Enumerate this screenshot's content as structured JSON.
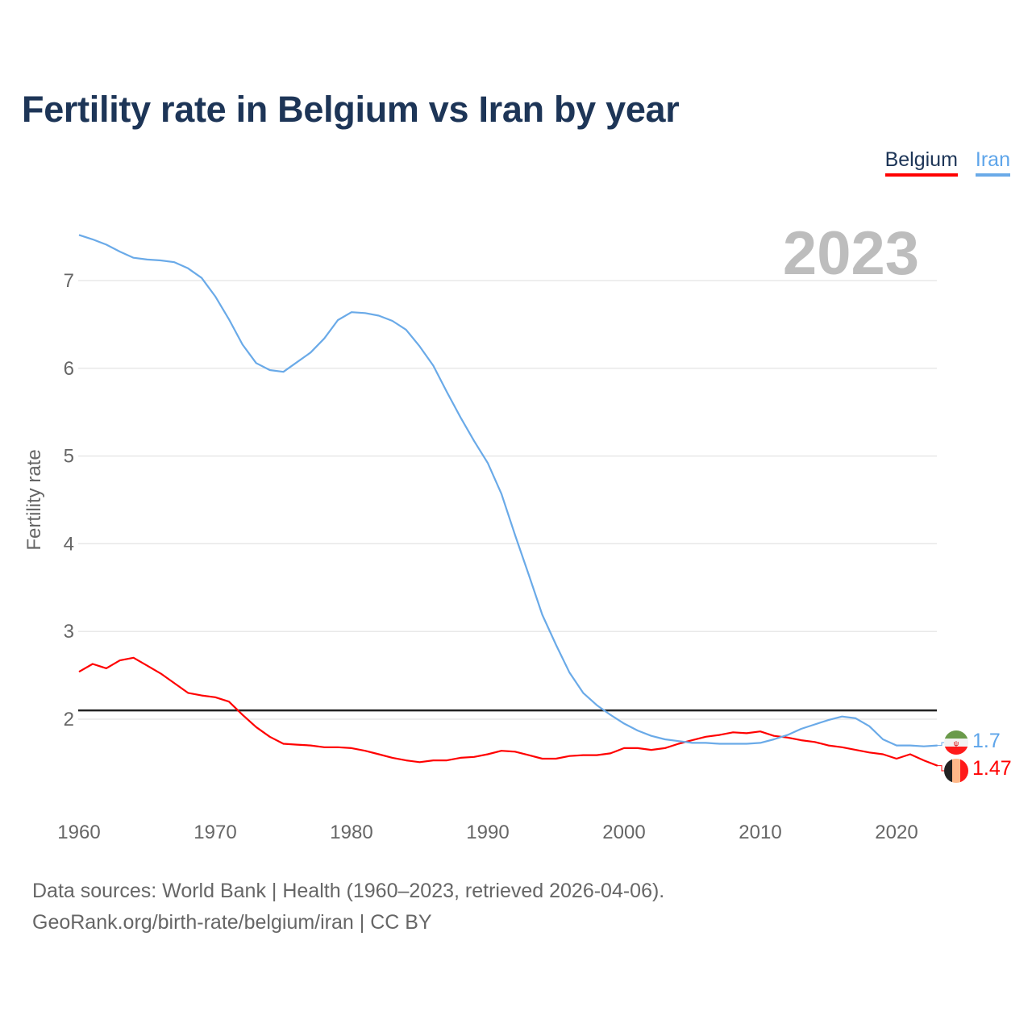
{
  "title": "Fertility rate in Belgium vs Iran by year",
  "legend": [
    {
      "label": "Belgium",
      "color": "#ff0000"
    },
    {
      "label": "Iran",
      "color": "#6aaae8"
    }
  ],
  "year_label": "2023",
  "end_labels": {
    "iran": "1.7",
    "belgium": "1.47"
  },
  "footer": {
    "line1": "Data sources: World Bank | Health (1960–2023, retrieved 2026-04-06).",
    "line2": "GeoRank.org/birth-rate/belgium/iran | CC BY"
  },
  "chart_data": {
    "type": "line",
    "title": "Fertility rate in Belgium vs Iran by year",
    "xlabel": "",
    "ylabel": "Fertility rate",
    "xlim": [
      1960,
      2023
    ],
    "xticks": [
      1960,
      1970,
      1980,
      1990,
      2000,
      2010,
      2020
    ],
    "yticks": [
      2,
      3,
      4,
      5,
      6,
      7
    ],
    "grid": true,
    "legend_position": "top-right",
    "reference_line": 2.1,
    "x_start": 1960,
    "series": [
      {
        "name": "Belgium",
        "color": "#ff0000",
        "values": [
          2.54,
          2.63,
          2.58,
          2.67,
          2.7,
          2.61,
          2.52,
          2.41,
          2.3,
          2.27,
          2.25,
          2.2,
          2.05,
          1.91,
          1.8,
          1.72,
          1.71,
          1.7,
          1.68,
          1.68,
          1.67,
          1.64,
          1.6,
          1.56,
          1.53,
          1.51,
          1.53,
          1.53,
          1.56,
          1.57,
          1.6,
          1.64,
          1.63,
          1.59,
          1.55,
          1.55,
          1.58,
          1.59,
          1.59,
          1.61,
          1.67,
          1.67,
          1.65,
          1.67,
          1.72,
          1.76,
          1.8,
          1.82,
          1.85,
          1.84,
          1.86,
          1.81,
          1.79,
          1.76,
          1.74,
          1.7,
          1.68,
          1.65,
          1.62,
          1.6,
          1.55,
          1.6,
          1.53,
          1.47
        ]
      },
      {
        "name": "Iran",
        "color": "#6aaae8",
        "values": [
          7.52,
          7.47,
          7.41,
          7.33,
          7.26,
          7.24,
          7.23,
          7.21,
          7.14,
          7.03,
          6.82,
          6.56,
          6.27,
          6.06,
          5.98,
          5.96,
          6.07,
          6.18,
          6.34,
          6.55,
          6.64,
          6.63,
          6.6,
          6.54,
          6.44,
          6.25,
          6.03,
          5.73,
          5.44,
          5.17,
          4.92,
          4.57,
          4.1,
          3.65,
          3.19,
          2.85,
          2.53,
          2.3,
          2.16,
          2.05,
          1.95,
          1.87,
          1.81,
          1.77,
          1.75,
          1.73,
          1.73,
          1.72,
          1.72,
          1.72,
          1.73,
          1.77,
          1.82,
          1.89,
          1.94,
          1.99,
          2.03,
          2.01,
          1.92,
          1.77,
          1.7,
          1.7,
          1.69,
          1.7
        ]
      }
    ]
  }
}
